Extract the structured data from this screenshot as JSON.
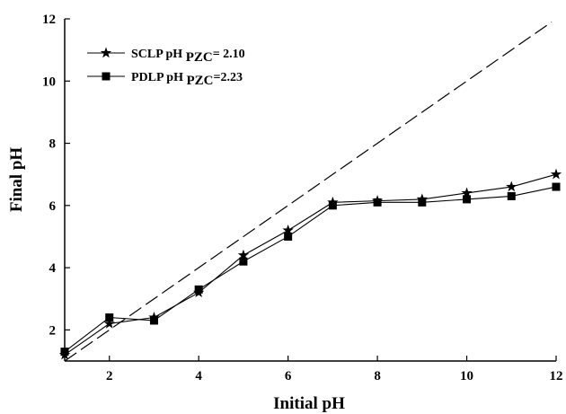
{
  "chart_data": {
    "type": "line",
    "xlabel": "Initial pH",
    "ylabel": "Final pH",
    "xlim": [
      1,
      12
    ],
    "ylim": [
      1,
      12
    ],
    "x_ticks": [
      2,
      4,
      6,
      8,
      10,
      12
    ],
    "y_ticks": [
      2,
      4,
      6,
      8,
      10,
      12
    ],
    "grid": false,
    "legend_position": "top-left",
    "x": [
      1,
      2,
      3,
      4,
      5,
      6,
      7,
      8,
      9,
      10,
      11,
      12
    ],
    "series": [
      {
        "name": "SCLP pH PZC= 2.10",
        "legend_main": "SCLP pH ",
        "legend_sub": "PZC",
        "legend_value": "= 2.10",
        "marker": "star",
        "values": [
          1.2,
          2.2,
          2.4,
          3.2,
          4.4,
          5.2,
          6.1,
          6.15,
          6.2,
          6.4,
          6.6,
          7.0
        ]
      },
      {
        "name": "PDLP pH PZC=2.23",
        "legend_main": "PDLP pH ",
        "legend_sub": "PZC",
        "legend_value": "=2.23",
        "marker": "square",
        "values": [
          1.3,
          2.4,
          2.3,
          3.3,
          4.2,
          5.0,
          6.0,
          6.1,
          6.1,
          6.2,
          6.3,
          6.6
        ]
      }
    ],
    "reference_line": {
      "style": "dashed",
      "x": [
        1,
        11.9
      ],
      "y": [
        1,
        11.9
      ]
    },
    "colors": {
      "line": "#000000",
      "axis": "#000000"
    }
  }
}
